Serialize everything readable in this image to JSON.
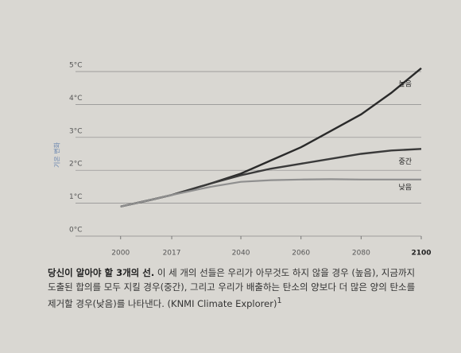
{
  "chart_data": {
    "type": "line",
    "ylabel": "기온 변화",
    "x": [
      2000,
      2010,
      2017,
      2030,
      2040,
      2050,
      2060,
      2070,
      2080,
      2090,
      2100
    ],
    "series": [
      {
        "name": "높음",
        "color": "#2a2a2a",
        "values": [
          0.9,
          1.1,
          1.25,
          1.6,
          1.9,
          2.3,
          2.7,
          3.2,
          3.7,
          4.35,
          5.1
        ]
      },
      {
        "name": "중간",
        "color": "#3a3a3a",
        "values": [
          0.9,
          1.1,
          1.25,
          1.6,
          1.85,
          2.05,
          2.2,
          2.35,
          2.5,
          2.6,
          2.65
        ]
      },
      {
        "name": "낮음",
        "color": "#8f8f8f",
        "values": [
          0.9,
          1.1,
          1.25,
          1.5,
          1.65,
          1.7,
          1.72,
          1.73,
          1.72,
          1.72,
          1.72
        ]
      }
    ],
    "xlim": [
      1985,
      2100
    ],
    "xticks": [
      2000,
      2017,
      2040,
      2060,
      2080,
      2100
    ],
    "ylim": [
      0,
      5
    ],
    "yticks": [
      {
        "value": 0,
        "label": "0°C"
      },
      {
        "value": 1,
        "label": "1°C"
      },
      {
        "value": 2,
        "label": "2°C"
      },
      {
        "value": 3,
        "label": "3°C"
      },
      {
        "value": 4,
        "label": "4°C"
      },
      {
        "value": 5,
        "label": "5°C"
      }
    ],
    "grid": true
  },
  "caption": {
    "lead": "당신이 알아야 할 3개의 선.",
    "lines": [
      " 이 세 개의 선들은 우리가 아무것도 하지 않을 경우 (높음), 지금까지",
      "도출된 합의를 모두 지킬 경우(중간), 그리고 우리가 배출하는 탄소의 양보다 더 많은 양의 탄소를",
      "제거할 경우(낮음)를 나타낸다. (KNMI Climate Explorer)"
    ],
    "note": "1"
  }
}
